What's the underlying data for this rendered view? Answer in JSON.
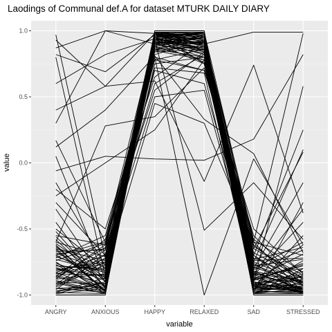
{
  "chart_data": {
    "type": "line",
    "title": "Laodings of Communal def.A for dataset MTURK DAILY DIARY",
    "xlabel": "variable",
    "ylabel": "value",
    "categories": [
      "ANGRY",
      "ANXIOUS",
      "HAPPY",
      "RELAXED",
      "SAD",
      "STRESSED"
    ],
    "yticks": [
      1.0,
      0.5,
      0.0,
      -0.5,
      -1.0
    ],
    "ytick_labels": [
      "1.0",
      "0.5",
      "0.0",
      "-0.5",
      "-1.0"
    ],
    "ylim": [
      -1.0,
      1.0
    ],
    "grid": true,
    "legend": "none",
    "series": [
      {
        "name": "s1",
        "values": [
          0.97,
          -0.72,
          0.99,
          0.95,
          -0.82,
          -0.97
        ]
      },
      {
        "name": "s2",
        "values": [
          0.87,
          1.0,
          0.98,
          0.92,
          -0.75,
          -0.9
        ]
      },
      {
        "name": "s3",
        "values": [
          0.82,
          0.69,
          0.97,
          0.9,
          0.99,
          0.99
        ]
      },
      {
        "name": "s4",
        "values": [
          0.8,
          -0.86,
          0.95,
          0.85,
          -0.88,
          -0.95
        ]
      },
      {
        "name": "s5",
        "values": [
          0.4,
          0.58,
          0.62,
          -0.14,
          0.74,
          -0.38
        ]
      },
      {
        "name": "s6",
        "values": [
          0.3,
          1.0,
          0.9,
          0.99,
          -0.6,
          0.98
        ]
      },
      {
        "name": "s7",
        "values": [
          0.17,
          -0.6,
          0.55,
          0.84,
          -0.7,
          0.25
        ]
      },
      {
        "name": "s8",
        "values": [
          0.12,
          0.4,
          0.81,
          0.33,
          0.07,
          -0.68
        ]
      },
      {
        "name": "s9",
        "values": [
          -0.06,
          0.05,
          0.03,
          0.02,
          0.18,
          0.82
        ]
      },
      {
        "name": "s10",
        "values": [
          -0.15,
          -0.78,
          0.97,
          0.88,
          -0.85,
          -0.92
        ]
      },
      {
        "name": "s11",
        "values": [
          -0.35,
          -0.9,
          0.93,
          -0.51,
          -0.15,
          -0.58
        ]
      },
      {
        "name": "s12",
        "values": [
          -0.45,
          -0.95,
          0.96,
          0.98,
          -0.9,
          -0.98
        ]
      },
      {
        "name": "s13",
        "values": [
          -0.55,
          -0.62,
          0.8,
          -1.0,
          0.03,
          -0.62
        ]
      },
      {
        "name": "s14",
        "values": [
          -0.6,
          0.28,
          0.35,
          0.72,
          -0.65,
          -0.85
        ]
      },
      {
        "name": "s15",
        "values": [
          -0.65,
          -0.97,
          0.94,
          0.86,
          -0.99,
          -0.99
        ]
      },
      {
        "name": "s16",
        "values": [
          -0.7,
          -0.88,
          0.91,
          0.8,
          -0.93,
          -0.86
        ]
      },
      {
        "name": "s17",
        "values": [
          -0.75,
          -0.99,
          0.99,
          0.96,
          -0.78,
          -0.73
        ]
      },
      {
        "name": "s18",
        "values": [
          -0.78,
          -0.8,
          0.92,
          0.9,
          -0.83,
          -0.95
        ]
      },
      {
        "name": "s19",
        "values": [
          -0.8,
          -0.92,
          0.96,
          0.94,
          -0.95,
          -0.88
        ]
      },
      {
        "name": "s20",
        "values": [
          -0.83,
          -0.7,
          0.88,
          0.78,
          -0.6,
          -0.7
        ]
      },
      {
        "name": "s21",
        "values": [
          -0.85,
          -0.96,
          0.98,
          0.97,
          -0.97,
          -0.99
        ]
      },
      {
        "name": "s22",
        "values": [
          -0.88,
          -0.84,
          0.9,
          0.83,
          -0.85,
          -0.8
        ]
      },
      {
        "name": "s23",
        "values": [
          -0.9,
          -0.99,
          0.97,
          0.92,
          -0.7,
          -0.93
        ]
      },
      {
        "name": "s24",
        "values": [
          -0.93,
          -0.75,
          0.86,
          0.88,
          -0.92,
          -0.97
        ]
      },
      {
        "name": "s25",
        "values": [
          -0.95,
          -0.93,
          0.99,
          0.99,
          -0.99,
          -0.9
        ]
      },
      {
        "name": "s26",
        "values": [
          -0.98,
          -0.87,
          0.95,
          0.76,
          -0.8,
          -0.6
        ]
      },
      {
        "name": "s27",
        "values": [
          -1.0,
          -1.0,
          1.0,
          1.0,
          -1.0,
          -1.0
        ]
      },
      {
        "name": "s28",
        "values": [
          -0.72,
          -0.55,
          0.78,
          0.7,
          -0.5,
          -0.84
        ]
      },
      {
        "name": "s29",
        "values": [
          -0.62,
          -0.98,
          0.93,
          0.91,
          -0.88,
          -0.78
        ]
      },
      {
        "name": "s30",
        "values": [
          -0.87,
          -0.64,
          0.84,
          0.86,
          -0.96,
          -0.94
        ]
      },
      {
        "name": "s31",
        "values": [
          -0.97,
          -0.91,
          0.9,
          0.95,
          -0.62,
          -0.91
        ]
      },
      {
        "name": "s32",
        "values": [
          -0.68,
          -0.82,
          0.97,
          0.97,
          -0.91,
          -0.96
        ]
      },
      {
        "name": "s33",
        "values": [
          -0.92,
          -0.66,
          0.92,
          0.82,
          -0.86,
          -0.99
        ]
      },
      {
        "name": "s34",
        "values": [
          -0.58,
          -0.94,
          0.86,
          0.93,
          -0.94,
          -0.82
        ]
      },
      {
        "name": "s35",
        "values": [
          -0.82,
          -0.73,
          0.99,
          0.89,
          -0.73,
          -0.64
        ]
      },
      {
        "name": "s36",
        "values": [
          -0.76,
          -0.89,
          0.75,
          0.8,
          -0.98,
          -0.97
        ]
      },
      {
        "name": "s37",
        "values": [
          -0.94,
          -0.77,
          0.95,
          0.99,
          -0.84,
          -0.89
        ]
      },
      {
        "name": "s38",
        "values": [
          -0.66,
          -0.97,
          0.89,
          0.96,
          -0.77,
          -0.92
        ]
      },
      {
        "name": "s39",
        "values": [
          -0.84,
          -0.85,
          0.94,
          0.87,
          -0.89,
          -0.76
        ]
      },
      {
        "name": "s40",
        "values": [
          -0.99,
          -0.95,
          0.98,
          0.85,
          -0.93,
          -0.98
        ]
      },
      {
        "name": "s41",
        "values": [
          -0.74,
          -0.61,
          0.82,
          0.93,
          -0.68,
          -0.87
        ]
      },
      {
        "name": "s42",
        "values": [
          -0.89,
          -0.98,
          0.97,
          0.98,
          -0.97,
          -0.93
        ]
      },
      {
        "name": "s43",
        "values": [
          -0.71,
          -0.83,
          0.91,
          0.75,
          -0.81,
          -0.66
        ]
      },
      {
        "name": "s44",
        "values": [
          -0.96,
          -0.69,
          0.87,
          0.92,
          -0.9,
          -0.99
        ]
      },
      {
        "name": "s45",
        "values": [
          -0.79,
          -0.93,
          0.99,
          0.95,
          -0.58,
          -0.83
        ]
      },
      {
        "name": "s46",
        "values": [
          -0.64,
          -0.79,
          0.93,
          0.84,
          -0.95,
          -0.95
        ]
      },
      {
        "name": "s47",
        "values": [
          -0.91,
          -0.99,
          0.96,
          0.97,
          -0.87,
          -0.9
        ]
      },
      {
        "name": "s48",
        "values": [
          -0.6,
          -0.71,
          0.7,
          0.6,
          -0.74,
          -0.72
        ]
      },
      {
        "name": "s49",
        "values": [
          -0.86,
          -0.58,
          0.95,
          0.91,
          -0.94,
          -0.97
        ]
      },
      {
        "name": "s50",
        "values": [
          -0.77,
          -0.96,
          0.9,
          0.99,
          -0.99,
          -0.85
        ]
      },
      {
        "name": "s51",
        "values": [
          0.93,
          0.58,
          0.98,
          0.97,
          -0.92,
          -0.94
        ]
      },
      {
        "name": "s52",
        "values": [
          0.6,
          0.82,
          0.94,
          0.89,
          -0.86,
          -0.98
        ]
      },
      {
        "name": "s53",
        "values": [
          -0.2,
          -0.5,
          0.65,
          0.92,
          -0.72,
          -0.88
        ]
      },
      {
        "name": "s54",
        "values": [
          -0.3,
          -0.7,
          0.5,
          0.55,
          -0.82,
          -0.9
        ]
      },
      {
        "name": "s55",
        "values": [
          -0.25,
          0.0,
          0.25,
          0.78,
          -0.95,
          -0.97
        ]
      },
      {
        "name": "s56",
        "values": [
          0.05,
          -0.88,
          0.88,
          0.97,
          -0.99,
          -0.8
        ]
      },
      {
        "name": "s57",
        "values": [
          -0.5,
          -0.8,
          0.45,
          0.3,
          -0.6,
          -0.98
        ]
      },
      {
        "name": "s58",
        "values": [
          -0.52,
          -0.94,
          0.85,
          0.88,
          -0.9,
          0.58
        ]
      },
      {
        "name": "s59",
        "values": [
          -0.56,
          -0.9,
          0.93,
          0.94,
          -0.75,
          0.1
        ]
      },
      {
        "name": "s60",
        "values": [
          -0.63,
          -0.97,
          0.97,
          0.9,
          -0.8,
          -0.15
        ]
      },
      {
        "name": "s61",
        "values": [
          -0.67,
          -0.66,
          0.6,
          0.82,
          -0.84,
          -0.35
        ]
      },
      {
        "name": "s62",
        "values": [
          -0.73,
          -0.83,
          0.99,
          0.98,
          -0.96,
          -0.55
        ]
      },
      {
        "name": "s63",
        "values": [
          -0.81,
          -0.75,
          0.9,
          0.96,
          -0.65,
          0.08
        ]
      },
      {
        "name": "s64",
        "values": [
          -0.95,
          -0.98,
          0.99,
          0.75,
          -0.85,
          -0.45
        ]
      },
      {
        "name": "s65",
        "values": [
          -0.88,
          -0.62,
          0.78,
          0.86,
          -0.98,
          -0.3
        ]
      },
      {
        "name": "s66",
        "values": [
          -0.98,
          -0.99,
          0.98,
          0.97,
          -0.93,
          -0.62
        ]
      },
      {
        "name": "s67",
        "values": [
          -0.8,
          -0.86,
          0.8,
          0.7,
          -0.55,
          -0.93
        ]
      },
      {
        "name": "s68",
        "values": [
          -0.7,
          -0.6,
          0.88,
          0.95,
          -0.7,
          -0.99
        ]
      },
      {
        "name": "s69",
        "values": [
          -0.9,
          -0.92,
          0.96,
          0.9,
          -0.96,
          -0.74
        ]
      },
      {
        "name": "s70",
        "values": [
          -0.84,
          -0.76,
          0.93,
          0.99,
          -0.83,
          -0.96
        ]
      },
      {
        "name": "s71",
        "values": [
          -0.75,
          -0.99,
          0.86,
          0.8,
          -0.91,
          -0.86
        ]
      },
      {
        "name": "s72",
        "values": [
          -0.61,
          -0.87,
          0.98,
          0.93,
          -0.79,
          -0.91
        ]
      },
      {
        "name": "s73",
        "values": [
          -0.93,
          -0.72,
          0.92,
          0.87,
          -0.97,
          -0.98
        ]
      },
      {
        "name": "s74",
        "values": [
          -0.99,
          -0.9,
          0.97,
          0.95,
          -0.89,
          -0.77
        ]
      },
      {
        "name": "s75",
        "values": [
          -0.69,
          -0.65,
          0.85,
          0.78,
          -0.63,
          -0.88
        ]
      },
      {
        "name": "s76",
        "values": [
          -0.86,
          -0.97,
          0.99,
          0.98,
          -0.99,
          -0.95
        ]
      },
      {
        "name": "s77",
        "values": [
          -0.78,
          -0.81,
          0.91,
          0.91,
          -0.88,
          -0.69
        ]
      },
      {
        "name": "s78",
        "values": [
          -0.97,
          -0.94,
          0.95,
          0.84,
          -0.76,
          -0.99
        ]
      },
      {
        "name": "s79",
        "values": [
          -0.65,
          -0.74,
          0.72,
          0.68,
          -0.94,
          -0.92
        ]
      },
      {
        "name": "s80",
        "values": [
          -0.83,
          -0.96,
          0.96,
          0.99,
          -0.92,
          -0.84
        ]
      }
    ]
  }
}
